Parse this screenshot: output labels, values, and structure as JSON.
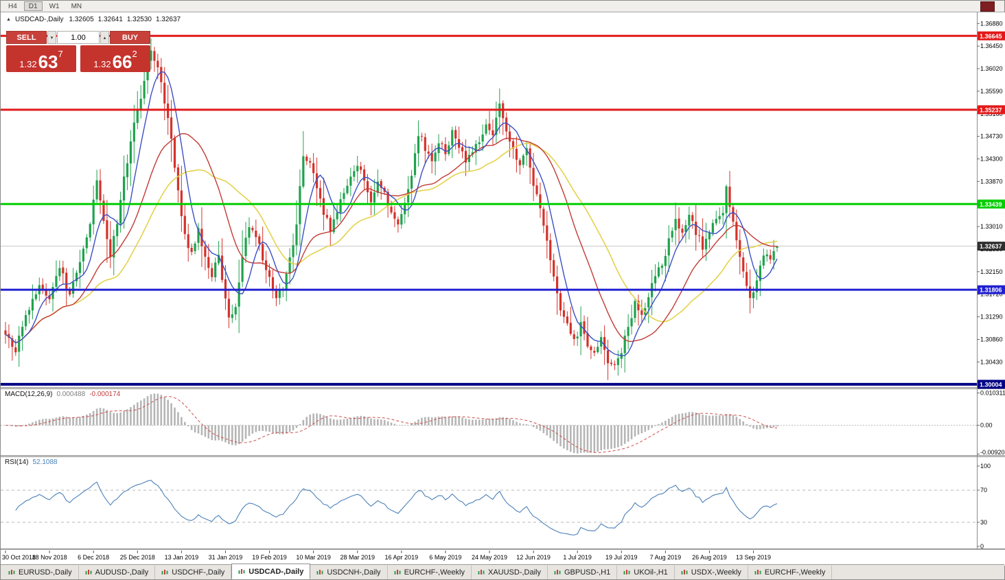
{
  "toolbar": {
    "timeframes": [
      {
        "label": "H4",
        "active": false
      },
      {
        "label": "D1",
        "active": true
      },
      {
        "label": "W1",
        "active": false
      },
      {
        "label": "MN",
        "active": false
      }
    ]
  },
  "chart_header": {
    "collapse_arrow": "▲",
    "symbol": "USDCAD-,Daily",
    "open": "1.32605",
    "high": "1.32641",
    "low": "1.32530",
    "close": "1.32637"
  },
  "trade_panel": {
    "sell_label": "SELL",
    "buy_label": "BUY",
    "volume": "1.00",
    "vol_down_glyph": "▾",
    "vol_up_glyph": "▴",
    "sell_price": {
      "prefix": "1.32",
      "big": "63",
      "sup": "7"
    },
    "buy_price": {
      "prefix": "1.32",
      "big": "66",
      "sup": "2"
    },
    "panel_color": "#c5332d"
  },
  "price_axis": {
    "labels": [
      "1.36880",
      "1.36450",
      "1.36020",
      "1.35590",
      "1.35160",
      "1.34730",
      "1.34300",
      "1.33870",
      "1.33440",
      "1.33010",
      "1.32580",
      "1.32150",
      "1.31720",
      "1.31290",
      "1.30860",
      "1.30430",
      "1.30000"
    ]
  },
  "levels": [
    {
      "label": "1.36645",
      "price": 1.36645,
      "color": "#e31919",
      "thickness": 3
    },
    {
      "label": "1.35237",
      "price": 1.35237,
      "color": "#e31919",
      "thickness": 3
    },
    {
      "label": "1.33439",
      "price": 1.33439,
      "color": "#00ce00",
      "thickness": 3
    },
    {
      "label": "1.31806",
      "price": 1.31806,
      "color": "#2020d0",
      "thickness": 3
    },
    {
      "label": "1.30004",
      "price": 1.30004,
      "color": "#000086",
      "thickness": 4
    }
  ],
  "current_price": {
    "label": "1.32637",
    "price": 1.32637,
    "badge_color": "#2e2e2e",
    "line_color": "#c6c6c6"
  },
  "indicators": {
    "macd": {
      "name": "MACD(12,26,9)",
      "main_value": "0.000488",
      "signal_value": "-0.000174",
      "axis_labels": [
        "0.010311",
        "0.00",
        "-0.009203"
      ],
      "histogram_color": "#b5b5b5",
      "signal_color": "#cf4d4d"
    },
    "rsi": {
      "name": "RSI(14)",
      "value": "52.1088",
      "axis_labels": [
        100,
        70,
        30,
        0
      ],
      "line_color": "#4a80b8",
      "level_lines": [
        70,
        30
      ]
    }
  },
  "date_axis": {
    "ticks": [
      {
        "label": "30 Oct 2018",
        "bar": 0
      },
      {
        "label": "18 Nov 2018",
        "bar": 13
      },
      {
        "label": "6 Dec 2018",
        "bar": 26
      },
      {
        "label": "25 Dec 2018",
        "bar": 39
      },
      {
        "label": "13 Jan 2019",
        "bar": 52
      },
      {
        "label": "31 Jan 2019",
        "bar": 65
      },
      {
        "label": "19 Feb 2019",
        "bar": 78
      },
      {
        "label": "10 Mar 2019",
        "bar": 91
      },
      {
        "label": "28 Mar 2019",
        "bar": 104
      },
      {
        "label": "16 Apr 2019",
        "bar": 117
      },
      {
        "label": "6 May 2019",
        "bar": 130
      },
      {
        "label": "24 May 2019",
        "bar": 143
      },
      {
        "label": "12 Jun 2019",
        "bar": 156
      },
      {
        "label": "1 Jul 2019",
        "bar": 169
      },
      {
        "label": "19 Jul 2019",
        "bar": 182
      },
      {
        "label": "7 Aug 2019",
        "bar": 195
      },
      {
        "label": "26 Aug 2019",
        "bar": 208
      },
      {
        "label": "13 Sep 2019",
        "bar": 221
      }
    ]
  },
  "tabs": {
    "active_index": 3,
    "items": [
      "EURUSD-,Daily",
      "AUDUSD-,Daily",
      "USDCHF-,Daily",
      "USDCAD-,Daily",
      "USDCNH-,Daily",
      "EURCHF-,Weekly",
      "XAUUSD-,Daily",
      "GBPUSD-,H1",
      "UKOil-,H1",
      "USDX-,Weekly",
      "EURCHF-,Weekly"
    ]
  },
  "chart_data": {
    "type": "candlestick",
    "symbol": "USDCAD",
    "timeframe": "Daily",
    "bar_count": 229,
    "visible_price_range": {
      "high": 1.3708,
      "low": 1.2995
    },
    "current_ohlc": {
      "open": 1.32605,
      "high": 1.32641,
      "low": 1.3253,
      "close": 1.32637
    },
    "bull_color": "#1fa24d",
    "bear_color": "#d3322c",
    "moving_averages": [
      {
        "period": 34,
        "color": "#e4d24b",
        "width": 1.6
      },
      {
        "period": 21,
        "color": "#c23a32",
        "width": 1.4
      },
      {
        "period": 7,
        "color": "#3a4fc4",
        "width": 1.4
      }
    ],
    "close_anchors": [
      [
        0,
        1.3095
      ],
      [
        3,
        1.3068
      ],
      [
        6,
        1.3128
      ],
      [
        10,
        1.3188
      ],
      [
        13,
        1.3166
      ],
      [
        16,
        1.3225
      ],
      [
        19,
        1.317
      ],
      [
        21,
        1.321
      ],
      [
        23,
        1.3258
      ],
      [
        25,
        1.3308
      ],
      [
        27,
        1.3392
      ],
      [
        29,
        1.3315
      ],
      [
        31,
        1.3242
      ],
      [
        33,
        1.3312
      ],
      [
        35,
        1.3392
      ],
      [
        37,
        1.3462
      ],
      [
        39,
        1.3522
      ],
      [
        41,
        1.3582
      ],
      [
        43,
        1.364
      ],
      [
        45,
        1.3602
      ],
      [
        47,
        1.3542
      ],
      [
        49,
        1.3468
      ],
      [
        51,
        1.3372
      ],
      [
        53,
        1.3282
      ],
      [
        55,
        1.3252
      ],
      [
        57,
        1.3292
      ],
      [
        59,
        1.3242
      ],
      [
        61,
        1.3206
      ],
      [
        63,
        1.3246
      ],
      [
        64,
        1.3198
      ],
      [
        66,
        1.3122
      ],
      [
        68,
        1.315
      ],
      [
        70,
        1.3245
      ],
      [
        72,
        1.3305
      ],
      [
        74,
        1.3285
      ],
      [
        76,
        1.3238
      ],
      [
        78,
        1.3205
      ],
      [
        80,
        1.3162
      ],
      [
        82,
        1.3188
      ],
      [
        84,
        1.3238
      ],
      [
        86,
        1.3305
      ],
      [
        88,
        1.3438
      ],
      [
        90,
        1.342
      ],
      [
        92,
        1.3378
      ],
      [
        94,
        1.3328
      ],
      [
        96,
        1.3295
      ],
      [
        98,
        1.3332
      ],
      [
        100,
        1.3362
      ],
      [
        102,
        1.3402
      ],
      [
        104,
        1.3422
      ],
      [
        106,
        1.3382
      ],
      [
        108,
        1.3352
      ],
      [
        110,
        1.3392
      ],
      [
        112,
        1.3362
      ],
      [
        114,
        1.3322
      ],
      [
        116,
        1.3302
      ],
      [
        118,
        1.3342
      ],
      [
        120,
        1.3392
      ],
      [
        122,
        1.348
      ],
      [
        124,
        1.3452
      ],
      [
        126,
        1.3422
      ],
      [
        128,
        1.3462
      ],
      [
        130,
        1.3442
      ],
      [
        132,
        1.3478
      ],
      [
        134,
        1.3452
      ],
      [
        136,
        1.3422
      ],
      [
        138,
        1.3442
      ],
      [
        140,
        1.3468
      ],
      [
        142,
        1.349
      ],
      [
        144,
        1.3482
      ],
      [
        146,
        1.353
      ],
      [
        148,
        1.3488
      ],
      [
        150,
        1.3442
      ],
      [
        152,
        1.3422
      ],
      [
        154,
        1.3445
      ],
      [
        156,
        1.3385
      ],
      [
        158,
        1.3332
      ],
      [
        160,
        1.3272
      ],
      [
        162,
        1.3202
      ],
      [
        164,
        1.3142
      ],
      [
        166,
        1.3112
      ],
      [
        168,
        1.3082
      ],
      [
        170,
        1.3112
      ],
      [
        172,
        1.3072
      ],
      [
        174,
        1.3062
      ],
      [
        176,
        1.3092
      ],
      [
        178,
        1.3042
      ],
      [
        180,
        1.3032
      ],
      [
        182,
        1.3062
      ],
      [
        184,
        1.3112
      ],
      [
        186,
        1.3152
      ],
      [
        188,
        1.3132
      ],
      [
        190,
        1.3172
      ],
      [
        192,
        1.3212
      ],
      [
        194,
        1.3232
      ],
      [
        196,
        1.3272
      ],
      [
        198,
        1.3312
      ],
      [
        200,
        1.3282
      ],
      [
        202,
        1.3322
      ],
      [
        204,
        1.3292
      ],
      [
        206,
        1.3262
      ],
      [
        208,
        1.3292
      ],
      [
        210,
        1.3312
      ],
      [
        212,
        1.3332
      ],
      [
        213,
        1.3372
      ],
      [
        214,
        1.3342
      ],
      [
        216,
        1.3282
      ],
      [
        218,
        1.3212
      ],
      [
        220,
        1.3162
      ],
      [
        222,
        1.3202
      ],
      [
        224,
        1.3252
      ],
      [
        226,
        1.3232
      ],
      [
        228,
        1.32637
      ]
    ],
    "macd_panel": {
      "peak": 0.0103,
      "range": [
        -0.0095,
        0.0115
      ]
    },
    "rsi_current": 52.1088
  }
}
